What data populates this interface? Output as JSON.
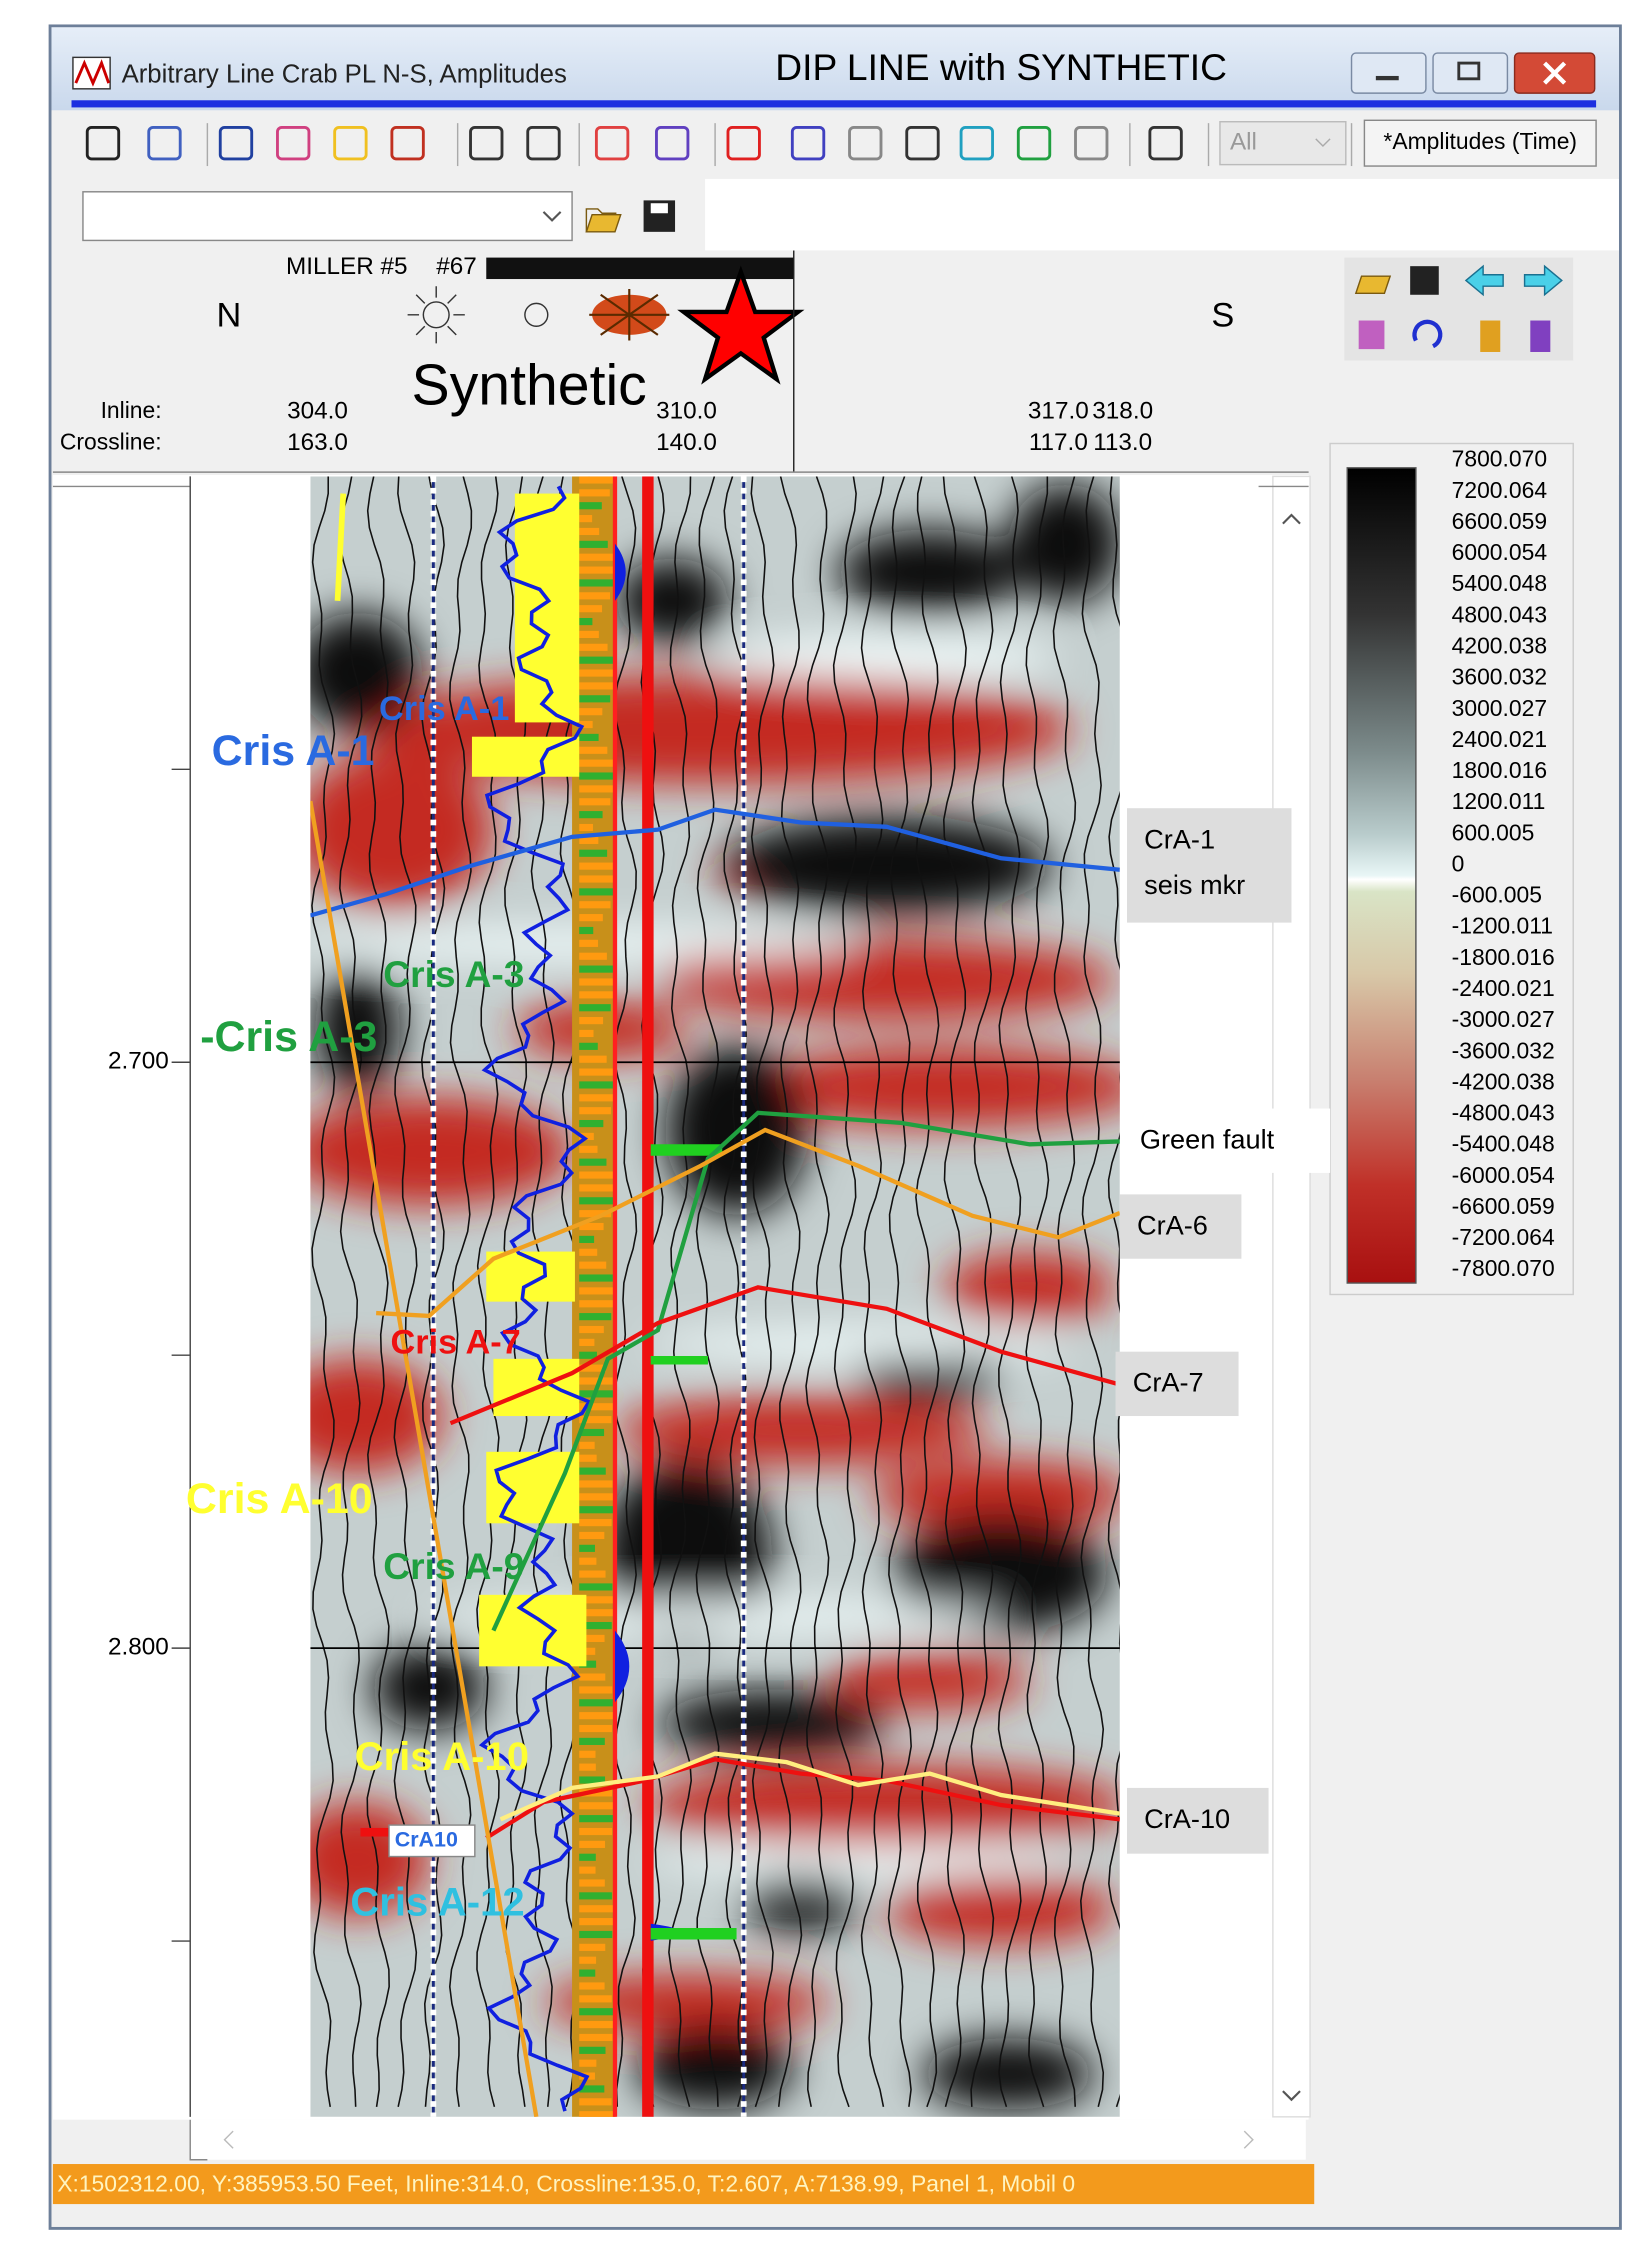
{
  "window": {
    "title": "Arbitrary Line Crab PL N-S, Amplitudes",
    "overlay_title": "DIP LINE with SYNTHETIC"
  },
  "toolbar": {
    "filter": "All",
    "attribute": "*Amplitudes (Time)"
  },
  "header": {
    "well": "MILLER #5",
    "well_number": "#67",
    "north": "N",
    "south": "S",
    "synthetic": "Synthetic",
    "inline_label": "Inline:",
    "crossline_label": "Crossline:",
    "traces": [
      {
        "inline": "304.0",
        "crossline": "163.0"
      },
      {
        "inline": "310.0",
        "crossline": "140.0"
      },
      {
        "inline": "317.0",
        "crossline": "117.0"
      },
      {
        "inline": "318.0",
        "crossline": "113.0"
      }
    ]
  },
  "time_axis": {
    "ylim": [
      2.6,
      2.88
    ],
    "ticks": [
      {
        "value": 2.7,
        "label": "2.700"
      },
      {
        "value": 2.8,
        "label": "2.800"
      }
    ]
  },
  "color_scale": {
    "labels": [
      "7800.070",
      "7200.064",
      "6600.059",
      "6000.054",
      "5400.048",
      "4800.043",
      "4200.038",
      "3600.032",
      "3000.027",
      "2400.021",
      "1800.016",
      "1200.011",
      "600.005",
      "0",
      "-600.005",
      "-1200.011",
      "-1800.016",
      "-2400.021",
      "-3000.027",
      "-3600.032",
      "-4200.038",
      "-4800.043",
      "-5400.048",
      "-6000.054",
      "-6600.059",
      "-7200.064",
      "-7800.070"
    ]
  },
  "horizon_labels": [
    "Cris A-1",
    "Cris A-1",
    "Cris A-3",
    "-Cris A-3",
    "Cris A-7",
    "Cris A-10",
    "Cris A-9",
    "Cris A-10",
    "CrA10",
    "Cris A-12"
  ],
  "annotations": [
    {
      "lines": [
        "CrA-1",
        "seis mkr"
      ]
    },
    {
      "lines": [
        "Green fault"
      ]
    },
    {
      "lines": [
        "CrA-6"
      ]
    },
    {
      "lines": [
        "CrA-7"
      ]
    },
    {
      "lines": [
        "CrA-10"
      ]
    }
  ],
  "status_bar": "X:1502312.00, Y:385953.50 Feet, Inline:314.0, Crossline:135.0, T:2.607, A:7138.99, Panel 1, Mobil 0"
}
